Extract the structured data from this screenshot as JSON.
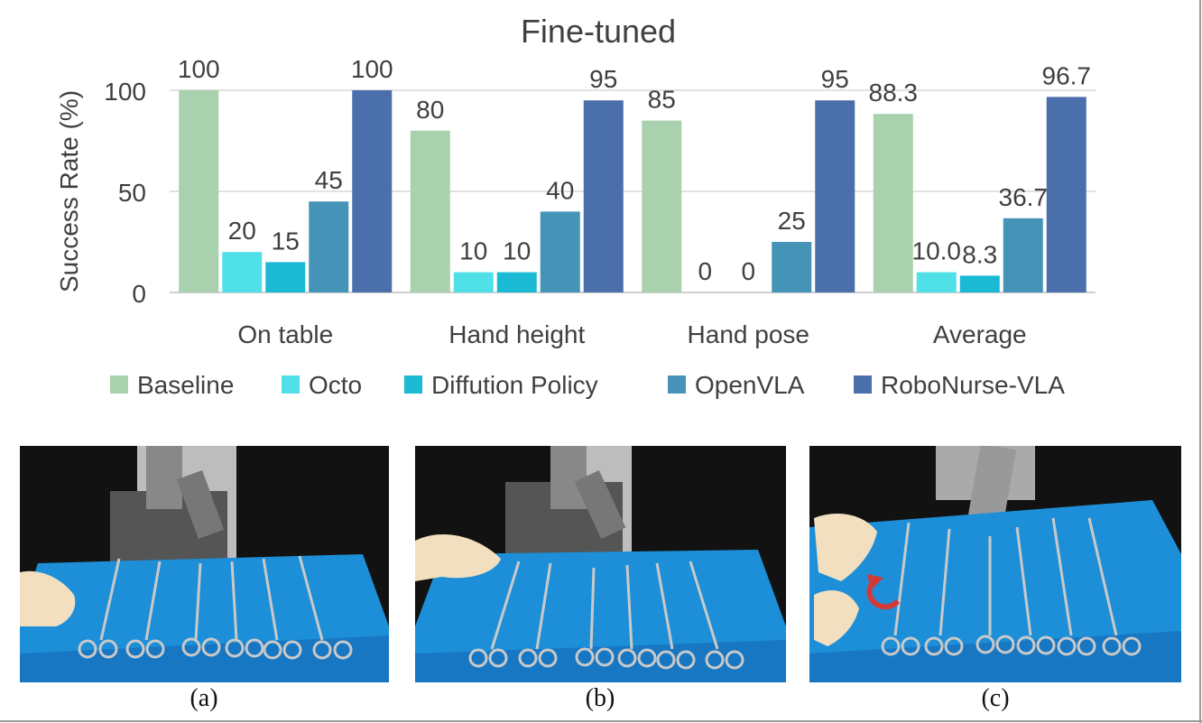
{
  "chart_data": {
    "type": "bar",
    "title": "Fine-tuned",
    "xlabel": "",
    "ylabel": "Success Rate (%)",
    "ylim": [
      0,
      100
    ],
    "yticks": [
      0,
      50,
      100
    ],
    "grid": true,
    "legend_position": "bottom",
    "categories": [
      "On table",
      "Hand height",
      "Hand pose",
      "Average"
    ],
    "series": [
      {
        "name": "Baseline",
        "color": "#a9d1ad",
        "values": [
          100,
          80,
          85,
          88.3
        ],
        "labels": [
          "100",
          "80",
          "85",
          "88.3"
        ]
      },
      {
        "name": "Octo",
        "color": "#4fe0e8",
        "values": [
          20,
          10,
          0,
          10.0
        ],
        "labels": [
          "20",
          "10",
          "0",
          "10.0"
        ]
      },
      {
        "name": "Diffution Policy",
        "color": "#1ab9d4",
        "values": [
          15,
          10,
          0,
          8.3
        ],
        "labels": [
          "15",
          "10",
          "0",
          "8.3"
        ]
      },
      {
        "name": "OpenVLA",
        "color": "#4594b8",
        "values": [
          45,
          40,
          25,
          36.7
        ],
        "labels": [
          "45",
          "40",
          "25",
          "36.7"
        ]
      },
      {
        "name": "RoboNurse-VLA",
        "color": "#4a6faa",
        "values": [
          100,
          95,
          95,
          96.7
        ],
        "labels": [
          "100",
          "95",
          "95",
          "96.7"
        ]
      }
    ]
  },
  "photos": [
    {
      "caption": "(a)",
      "hand_icon": "gloved-hand-icon"
    },
    {
      "caption": "(b)",
      "hand_icon": "gloved-hand-icon"
    },
    {
      "caption": "(c)",
      "hand_icon": "gloved-hand-icon",
      "arrow_icon": "rotate-arrow-icon"
    }
  ]
}
